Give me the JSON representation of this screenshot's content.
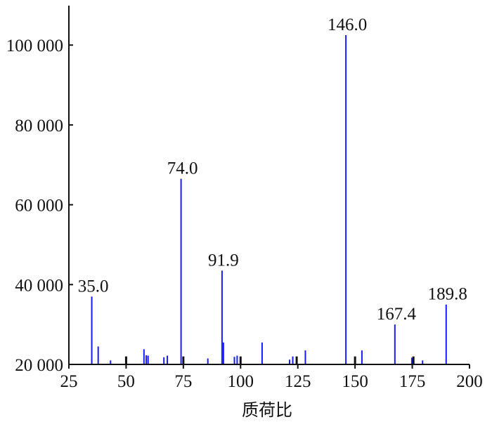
{
  "chart_data": {
    "type": "bar",
    "title": "",
    "xlabel": "质荷比",
    "ylabel": "",
    "xlim": [
      25,
      200
    ],
    "ylim": [
      20000,
      105000
    ],
    "grid": false,
    "legend": "none",
    "x_ticks": [
      "25",
      "50",
      "75",
      "100",
      "125",
      "150",
      "175",
      "200"
    ],
    "x_tick_values": [
      25,
      50,
      75,
      100,
      125,
      150,
      175,
      200
    ],
    "y_ticks": [
      "20 000",
      "40 000",
      "60 000",
      "80 000",
      "100 000"
    ],
    "y_tick_values": [
      20000,
      40000,
      60000,
      80000,
      100000
    ],
    "colors": {
      "peaks": "#1a1aff",
      "axis": "#111111"
    },
    "peaks": [
      {
        "x": 35.0,
        "y": 37000
      },
      {
        "x": 37.8,
        "y": 24500
      },
      {
        "x": 43.2,
        "y": 21000
      },
      {
        "x": 57.8,
        "y": 23800
      },
      {
        "x": 58.8,
        "y": 22300
      },
      {
        "x": 59.6,
        "y": 22200
      },
      {
        "x": 66.5,
        "y": 21800
      },
      {
        "x": 68.0,
        "y": 22200
      },
      {
        "x": 74.0,
        "y": 66500
      },
      {
        "x": 85.7,
        "y": 21500
      },
      {
        "x": 91.9,
        "y": 43500
      },
      {
        "x": 92.5,
        "y": 25500
      },
      {
        "x": 97.3,
        "y": 21900
      },
      {
        "x": 98.5,
        "y": 22200
      },
      {
        "x": 109.4,
        "y": 25500
      },
      {
        "x": 121.4,
        "y": 21200
      },
      {
        "x": 122.8,
        "y": 22000
      },
      {
        "x": 128.3,
        "y": 23500
      },
      {
        "x": 146.0,
        "y": 102500
      },
      {
        "x": 153.0,
        "y": 23500
      },
      {
        "x": 167.4,
        "y": 30000
      },
      {
        "x": 174.8,
        "y": 21700
      },
      {
        "x": 179.5,
        "y": 21000
      },
      {
        "x": 189.8,
        "y": 35000
      }
    ],
    "axis_marks": [
      {
        "x": 50.0,
        "y": 22000
      },
      {
        "x": 75.0,
        "y": 22000
      },
      {
        "x": 100.0,
        "y": 22000
      },
      {
        "x": 124.5,
        "y": 22000
      },
      {
        "x": 150.0,
        "y": 22000
      },
      {
        "x": 175.5,
        "y": 22000
      }
    ],
    "labeled_peaks": [
      {
        "x": 35.0,
        "y": 37000,
        "label": "35.0"
      },
      {
        "x": 74.0,
        "y": 66500,
        "label": "74.0"
      },
      {
        "x": 91.9,
        "y": 43500,
        "label": "91.9"
      },
      {
        "x": 146.0,
        "y": 102500,
        "label": "146.0"
      },
      {
        "x": 167.4,
        "y": 30000,
        "label": "167.4"
      },
      {
        "x": 189.8,
        "y": 35000,
        "label": "189.8"
      }
    ]
  }
}
